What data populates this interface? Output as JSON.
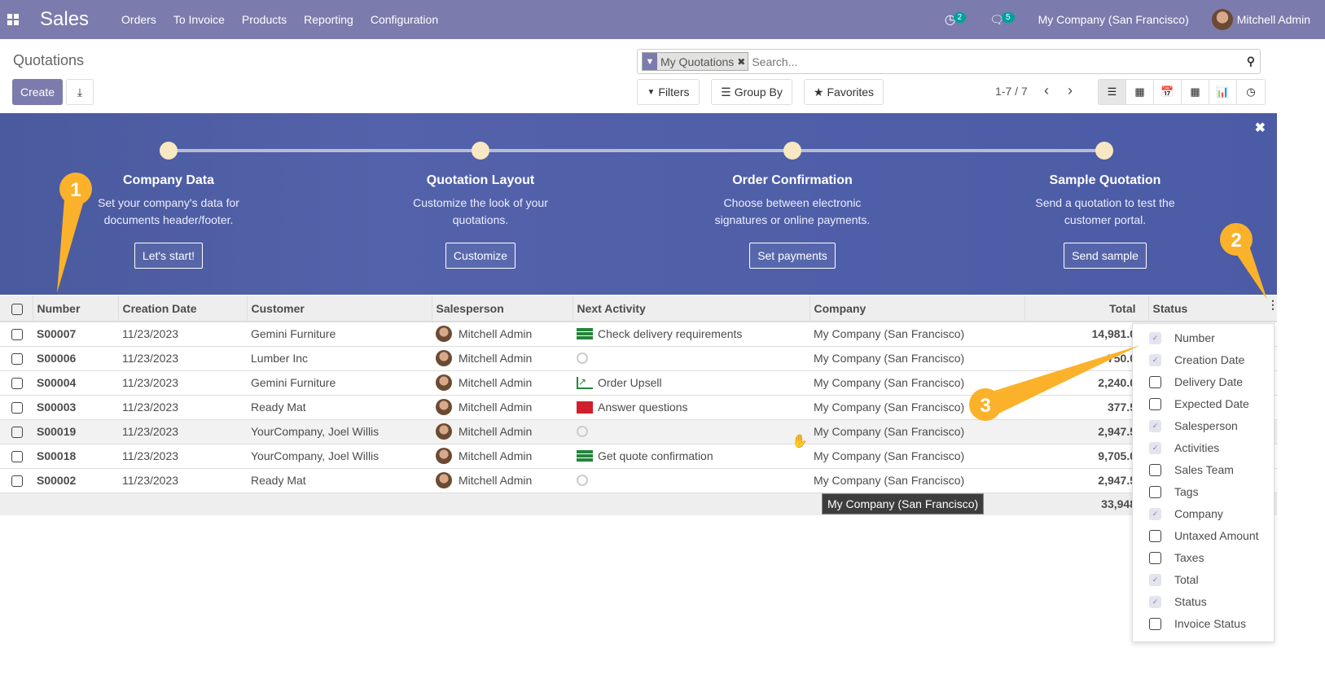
{
  "navbar": {
    "app": "Sales",
    "menu": [
      "Orders",
      "To Invoice",
      "Products",
      "Reporting",
      "Configuration"
    ],
    "activity_count": "2",
    "message_count": "5",
    "company": "My Company (San Francisco)",
    "user": "Mitchell Admin"
  },
  "control": {
    "title": "Quotations",
    "create": "Create",
    "facet": "My Quotations",
    "search_placeholder": "Search...",
    "filters": "Filters",
    "group_by": "Group By",
    "favorites": "Favorites",
    "pager": "1-7 / 7"
  },
  "banner": {
    "steps": [
      {
        "title": "Company Data",
        "desc1": "Set your company's data for",
        "desc2": "documents header/footer.",
        "button": "Let's start!"
      },
      {
        "title": "Quotation Layout",
        "desc1": "Customize the look of your",
        "desc2": "quotations.",
        "button": "Customize"
      },
      {
        "title": "Order Confirmation",
        "desc1": "Choose between electronic",
        "desc2": "signatures or online payments.",
        "button": "Set payments"
      },
      {
        "title": "Sample Quotation",
        "desc1": "Send a quotation to test the",
        "desc2": "customer portal.",
        "button": "Send sample"
      }
    ]
  },
  "table": {
    "columns": [
      "Number",
      "Creation Date",
      "Customer",
      "Salesperson",
      "Next Activity",
      "Company",
      "Total",
      "Status"
    ],
    "rows": [
      {
        "number": "S00007",
        "date": "11/23/2023",
        "customer": "Gemini Furniture",
        "salesperson": "Mitchell Admin",
        "activity": "Check delivery requirements",
        "activity_icon": "todo",
        "company": "My Company (San Francisco)",
        "total": "14,981.0"
      },
      {
        "number": "S00006",
        "date": "11/23/2023",
        "customer": "Lumber Inc",
        "salesperson": "Mitchell Admin",
        "activity": "",
        "activity_icon": "clock",
        "company": "My Company (San Francisco)",
        "total": "750.0"
      },
      {
        "number": "S00004",
        "date": "11/23/2023",
        "customer": "Gemini Furniture",
        "salesperson": "Mitchell Admin",
        "activity": "Order Upsell",
        "activity_icon": "upsell",
        "company": "My Company (San Francisco)",
        "total": "2,240.0"
      },
      {
        "number": "S00003",
        "date": "11/23/2023",
        "customer": "Ready Mat",
        "salesperson": "Mitchell Admin",
        "activity": "Answer questions",
        "activity_icon": "mail",
        "company": "My Company (San Francisco)",
        "total": "377.5"
      },
      {
        "number": "S00019",
        "date": "11/23/2023",
        "customer": "YourCompany, Joel Willis",
        "salesperson": "Mitchell Admin",
        "activity": "",
        "activity_icon": "clock",
        "company": "My Company (San Francisco)",
        "total": "2,947.5"
      },
      {
        "number": "S00018",
        "date": "11/23/2023",
        "customer": "YourCompany, Joel Willis",
        "salesperson": "Mitchell Admin",
        "activity": "Get quote confirmation",
        "activity_icon": "todo",
        "company": "My Company (San Francisco)",
        "total": "9,705.0"
      },
      {
        "number": "S00002",
        "date": "11/23/2023",
        "customer": "Ready Mat",
        "salesperson": "Mitchell Admin",
        "activity": "",
        "activity_icon": "clock",
        "company": "My Company (San Francisco)",
        "total": "2,947.5"
      }
    ],
    "sum_total": "33,948"
  },
  "optional_columns": [
    {
      "label": "Number",
      "checked": true
    },
    {
      "label": "Creation Date",
      "checked": true
    },
    {
      "label": "Delivery Date",
      "checked": false
    },
    {
      "label": "Expected Date",
      "checked": false
    },
    {
      "label": "Salesperson",
      "checked": true
    },
    {
      "label": "Activities",
      "checked": true
    },
    {
      "label": "Sales Team",
      "checked": false
    },
    {
      "label": "Tags",
      "checked": false
    },
    {
      "label": "Company",
      "checked": true
    },
    {
      "label": "Untaxed Amount",
      "checked": false
    },
    {
      "label": "Taxes",
      "checked": false
    },
    {
      "label": "Total",
      "checked": true
    },
    {
      "label": "Status",
      "checked": true
    },
    {
      "label": "Invoice Status",
      "checked": false
    }
  ],
  "tooltip": "My Company (San Francisco)",
  "callouts": [
    "1",
    "2",
    "3"
  ],
  "colors": {
    "brand": "#7c7bad",
    "callout": "#fbb22a",
    "banner": "#4f5fa8"
  }
}
